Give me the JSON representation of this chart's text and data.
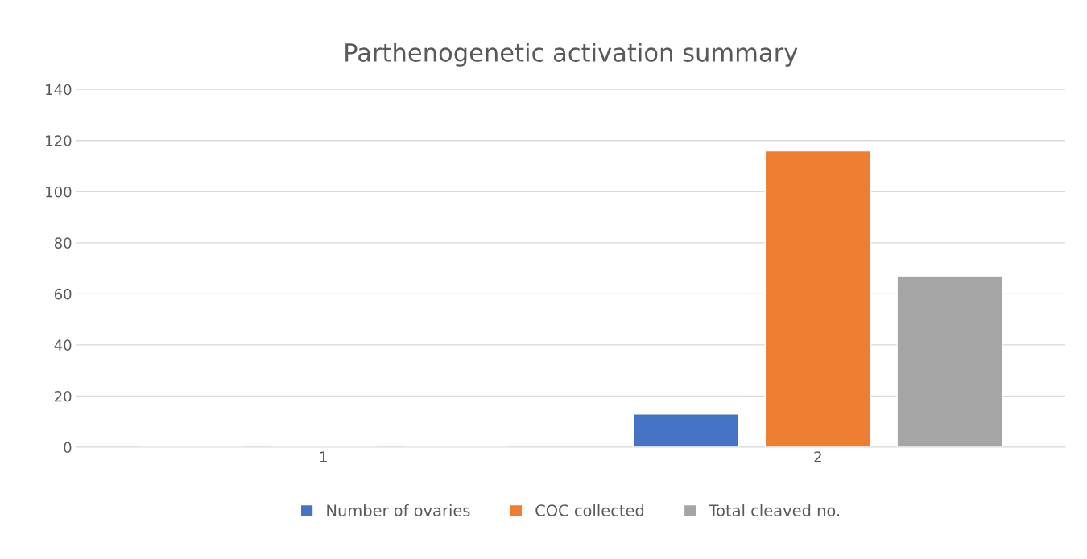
{
  "chart_data": {
    "type": "bar",
    "title": "Parthenogenetic activation summary",
    "categories": [
      "1",
      "2"
    ],
    "series": [
      {
        "name": "Number of ovaries",
        "color": "#4472c4",
        "values": [
          0,
          13
        ]
      },
      {
        "name": "COC collected",
        "color": "#ed7d31",
        "values": [
          0,
          116
        ]
      },
      {
        "name": "Total cleaved no.",
        "color": "#a5a5a5",
        "values": [
          0,
          67
        ]
      }
    ],
    "ylim": [
      0,
      140
    ],
    "yticks": [
      0,
      20,
      40,
      60,
      80,
      100,
      120,
      140
    ],
    "grid": "y",
    "legend": "bottom"
  }
}
